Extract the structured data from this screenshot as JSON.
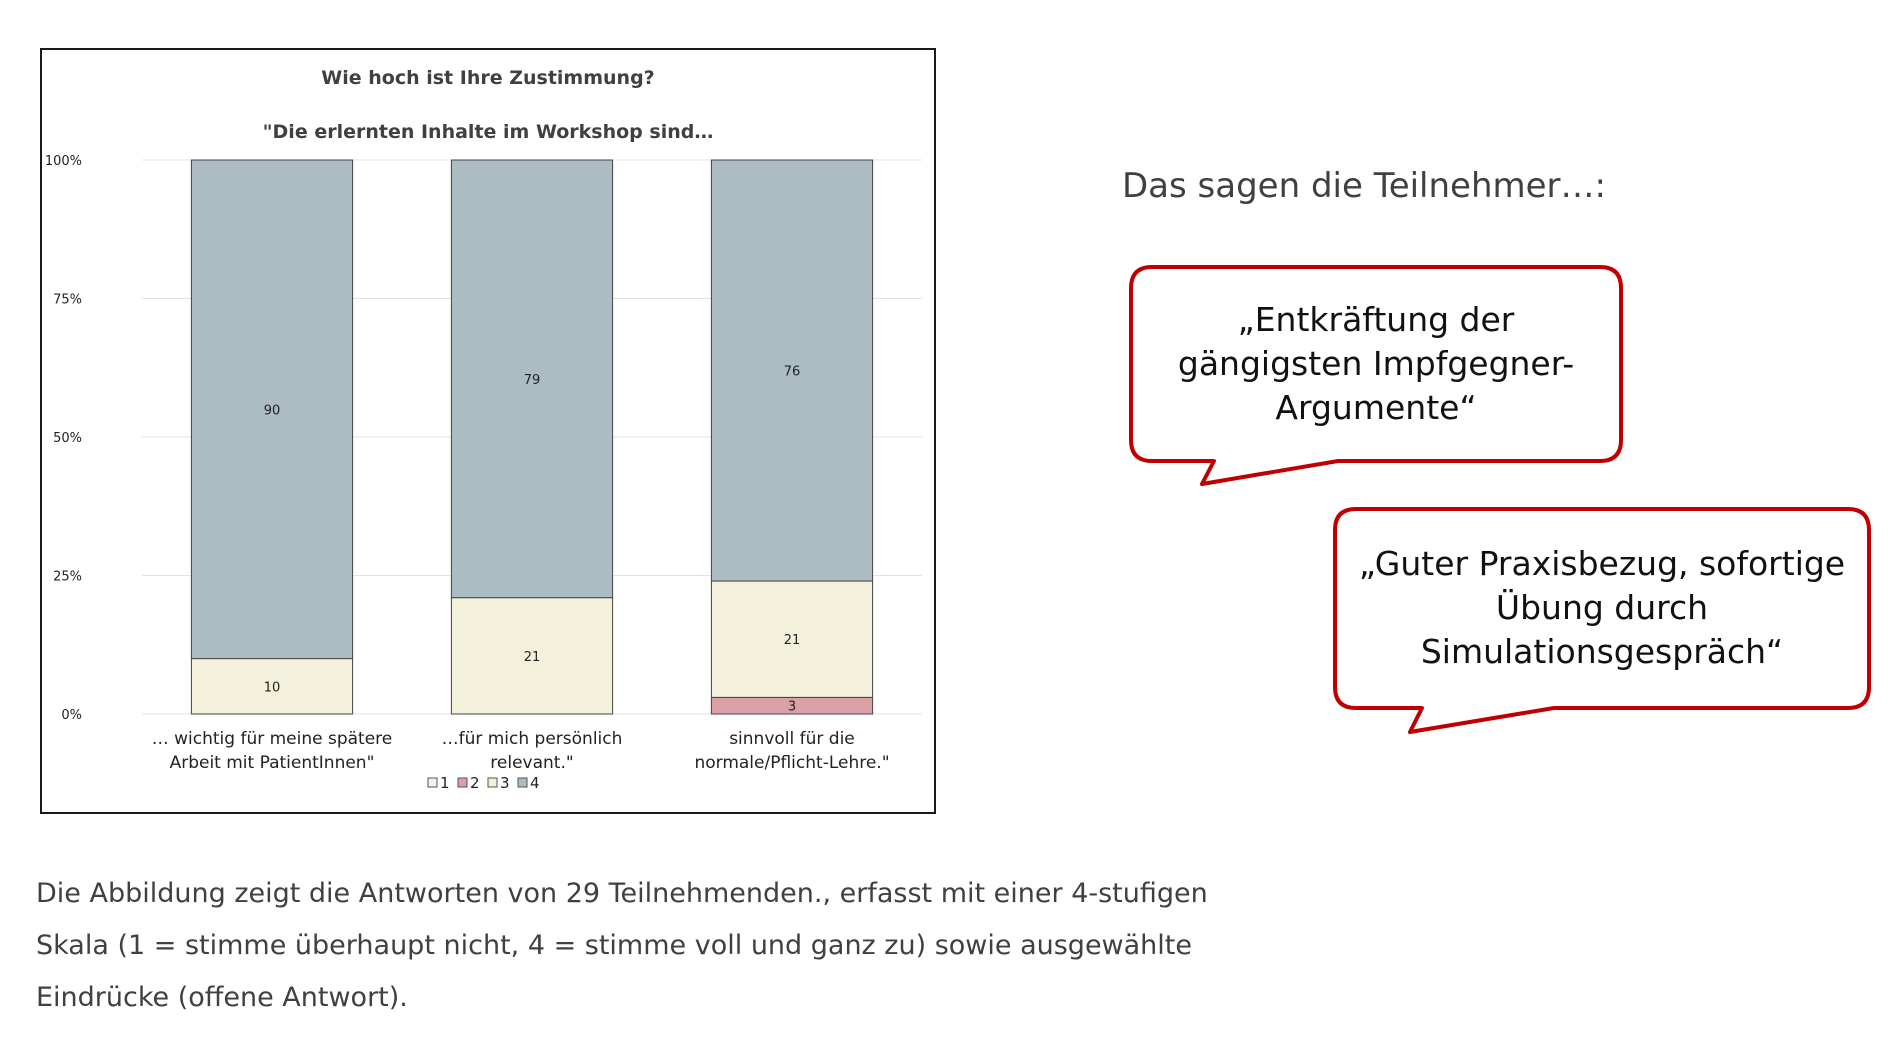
{
  "chart_data": {
    "type": "bar",
    "stacked": true,
    "percent": true,
    "title_line1": "Wie hoch ist Ihre Zustimmung?",
    "title_line2": "\"Die erlernten Inhalte im Workshop sind…",
    "categories": [
      [
        "… wichtig für meine spätere",
        "Arbeit mit PatientInnen\""
      ],
      [
        "…für mich persönlich",
        "relevant.\""
      ],
      [
        "sinnvoll für die",
        "normale/Pflicht-Lehre.\""
      ]
    ],
    "series": [
      {
        "name": "1",
        "color": "#f2f2f2",
        "values": [
          0,
          0,
          0
        ],
        "labels": [
          "",
          "",
          ""
        ]
      },
      {
        "name": "2",
        "color": "#d9a0a6",
        "values": [
          0,
          0,
          3
        ],
        "labels": [
          "",
          "",
          "3"
        ]
      },
      {
        "name": "3",
        "color": "#f3f1dc",
        "values": [
          10,
          21,
          21
        ],
        "labels": [
          "10",
          "21",
          "21"
        ]
      },
      {
        "name": "4",
        "color": "#abbcc3",
        "values": [
          90,
          79,
          76
        ],
        "labels": [
          "90",
          "79",
          "76"
        ]
      }
    ],
    "y_ticks": [
      "0%",
      "25%",
      "50%",
      "75%",
      "100%"
    ],
    "ylim": [
      0,
      100
    ],
    "grid": true,
    "legend": "bottom"
  },
  "heading": "Das sagen die Teilnehmer…:",
  "quotes": [
    {
      "lines": [
        "„Entkräftung der",
        "gängigsten Impfgegner-",
        "Argumente“"
      ]
    },
    {
      "lines": [
        "„Guter Praxisbezug, sofortige",
        "Übung durch",
        "Simulationsgespräch“"
      ]
    }
  ],
  "caption": "Die Abbildung zeigt die Antworten von 29 Teilnehmenden., erfasst mit einer 4-stufigen Skala (1 = stimme überhaupt nicht, 4 = stimme voll und ganz zu) sowie ausgewählte Eindrücke (offene Antwort).",
  "colors": {
    "bubble_border": "#c00000",
    "axis_text": "#222222"
  }
}
